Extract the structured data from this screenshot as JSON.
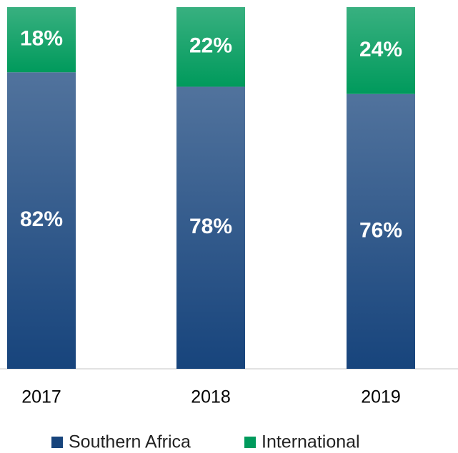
{
  "chart_data": {
    "type": "bar",
    "stacked": true,
    "categories": [
      "2017",
      "2018",
      "2019"
    ],
    "series": [
      {
        "name": "Southern Africa",
        "color": "#17447c",
        "values": [
          82,
          78,
          76
        ],
        "value_labels": [
          "82%",
          "78%",
          "76%"
        ]
      },
      {
        "name": "International",
        "color": "#009a5c",
        "values": [
          18,
          22,
          24
        ],
        "value_labels": [
          "18%",
          "22%",
          "24%"
        ]
      }
    ],
    "ylim": [
      0,
      100
    ],
    "legend": "bottom"
  }
}
